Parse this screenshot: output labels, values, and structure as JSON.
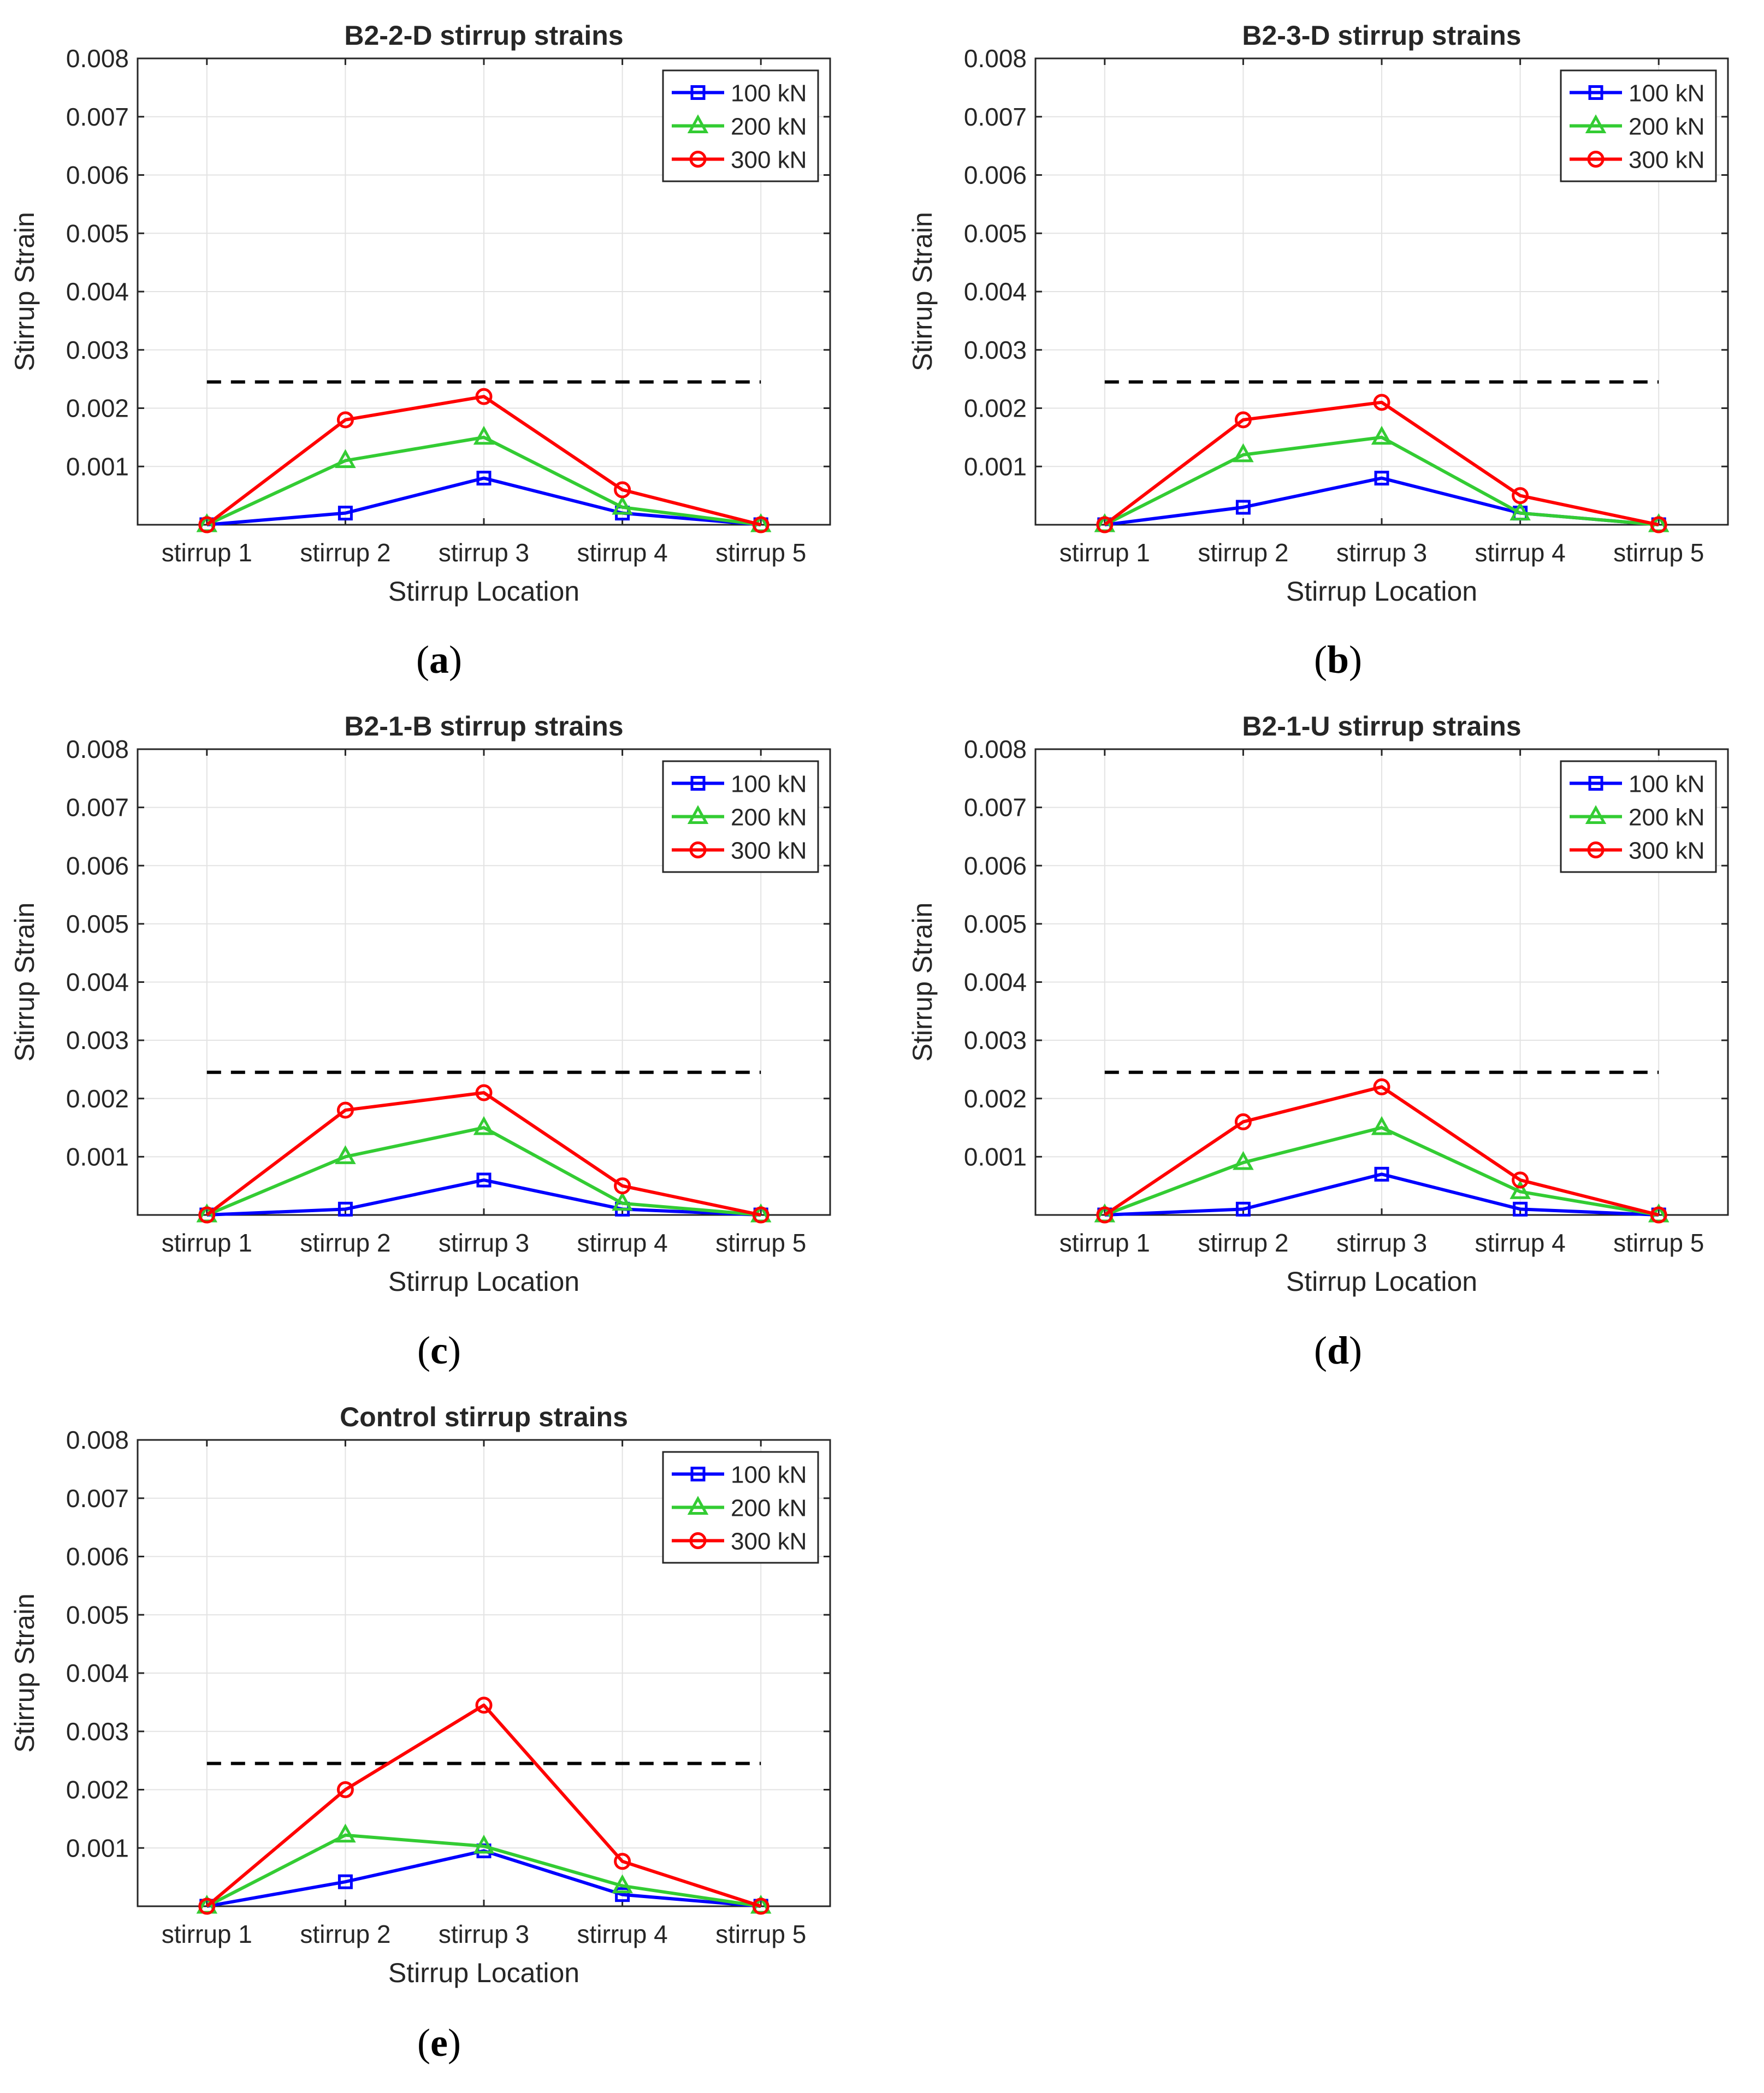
{
  "chart_data": [
    {
      "type": "line",
      "panel": "a",
      "title": "B2-2-D stirrup strains",
      "xlabel": "Stirrup Location",
      "ylabel": "Stirrup Strain",
      "categories": [
        "stirrup 1",
        "stirrup 2",
        "stirrup 3",
        "stirrup 4",
        "stirrup 5"
      ],
      "ylim": [
        0,
        0.008
      ],
      "yticks": [
        0.001,
        0.002,
        0.003,
        0.004,
        0.005,
        0.006,
        0.007,
        0.008
      ],
      "ytick_labels": [
        "0.001",
        "0.002",
        "0.003",
        "0.004",
        "0.005",
        "0.006",
        "0.007",
        "0.008"
      ],
      "grid": true,
      "legend_position": "top-right",
      "series": [
        {
          "name": "100 kN",
          "color": "#0000ff",
          "marker": "square",
          "values": [
            0,
            0.0002,
            0.0008,
            0.0002,
            0
          ]
        },
        {
          "name": "200 kN",
          "color": "#33cc33",
          "marker": "triangle",
          "values": [
            0,
            0.0011,
            0.0015,
            0.0003,
            0
          ]
        },
        {
          "name": "300 kN",
          "color": "#ff0000",
          "marker": "circle",
          "values": [
            0,
            0.0018,
            0.0022,
            0.0006,
            0
          ]
        }
      ],
      "reference_line": {
        "value": 0.00245,
        "color": "#000000",
        "style": "dashed"
      }
    },
    {
      "type": "line",
      "panel": "b",
      "title": "B2-3-D stirrup strains",
      "xlabel": "Stirrup Location",
      "ylabel": "Stirrup Strain",
      "categories": [
        "stirrup 1",
        "stirrup 2",
        "stirrup 3",
        "stirrup 4",
        "stirrup 5"
      ],
      "ylim": [
        0,
        0.008
      ],
      "yticks": [
        0.001,
        0.002,
        0.003,
        0.004,
        0.005,
        0.006,
        0.007,
        0.008
      ],
      "ytick_labels": [
        "0.001",
        "0.002",
        "0.003",
        "0.004",
        "0.005",
        "0.006",
        "0.007",
        "0.008"
      ],
      "grid": true,
      "legend_position": "top-right",
      "series": [
        {
          "name": "100 kN",
          "color": "#0000ff",
          "marker": "square",
          "values": [
            0,
            0.0003,
            0.0008,
            0.0002,
            0
          ]
        },
        {
          "name": "200 kN",
          "color": "#33cc33",
          "marker": "triangle",
          "values": [
            0,
            0.0012,
            0.0015,
            0.0002,
            0
          ]
        },
        {
          "name": "300 kN",
          "color": "#ff0000",
          "marker": "circle",
          "values": [
            0,
            0.0018,
            0.0021,
            0.0005,
            0
          ]
        }
      ],
      "reference_line": {
        "value": 0.00245,
        "color": "#000000",
        "style": "dashed"
      }
    },
    {
      "type": "line",
      "panel": "c",
      "title": "B2-1-B stirrup strains",
      "xlabel": "Stirrup Location",
      "ylabel": "Stirrup Strain",
      "categories": [
        "stirrup 1",
        "stirrup 2",
        "stirrup 3",
        "stirrup 4",
        "stirrup 5"
      ],
      "ylim": [
        0,
        0.008
      ],
      "yticks": [
        0.001,
        0.002,
        0.003,
        0.004,
        0.005,
        0.006,
        0.007,
        0.008
      ],
      "ytick_labels": [
        "0.001",
        "0.002",
        "0.003",
        "0.004",
        "0.005",
        "0.006",
        "0.007",
        "0.008"
      ],
      "grid": true,
      "legend_position": "top-right",
      "series": [
        {
          "name": "100 kN",
          "color": "#0000ff",
          "marker": "square",
          "values": [
            0,
            0.0001,
            0.0006,
            0.0001,
            0
          ]
        },
        {
          "name": "200 kN",
          "color": "#33cc33",
          "marker": "triangle",
          "values": [
            0,
            0.001,
            0.0015,
            0.0002,
            0
          ]
        },
        {
          "name": "300 kN",
          "color": "#ff0000",
          "marker": "circle",
          "values": [
            0,
            0.0018,
            0.0021,
            0.0005,
            0
          ]
        }
      ],
      "reference_line": {
        "value": 0.00245,
        "color": "#000000",
        "style": "dashed"
      }
    },
    {
      "type": "line",
      "panel": "d",
      "title": "B2-1-U stirrup strains",
      "xlabel": "Stirrup Location",
      "ylabel": "Stirrup Strain",
      "categories": [
        "stirrup 1",
        "stirrup 2",
        "stirrup 3",
        "stirrup 4",
        "stirrup 5"
      ],
      "ylim": [
        0,
        0.008
      ],
      "yticks": [
        0.001,
        0.002,
        0.003,
        0.004,
        0.005,
        0.006,
        0.007,
        0.008
      ],
      "ytick_labels": [
        "0.001",
        "0.002",
        "0.003",
        "0.004",
        "0.005",
        "0.006",
        "0.007",
        "0.008"
      ],
      "grid": true,
      "legend_position": "top-right",
      "series": [
        {
          "name": "100 kN",
          "color": "#0000ff",
          "marker": "square",
          "values": [
            0,
            0.0001,
            0.0007,
            0.0001,
            0
          ]
        },
        {
          "name": "200 kN",
          "color": "#33cc33",
          "marker": "triangle",
          "values": [
            0,
            0.0009,
            0.0015,
            0.0004,
            0
          ]
        },
        {
          "name": "300 kN",
          "color": "#ff0000",
          "marker": "circle",
          "values": [
            0,
            0.0016,
            0.0022,
            0.0006,
            0
          ]
        }
      ],
      "reference_line": {
        "value": 0.00245,
        "color": "#000000",
        "style": "dashed"
      }
    },
    {
      "type": "line",
      "panel": "e",
      "title": "Control stirrup strains",
      "xlabel": "Stirrup Location",
      "ylabel": "Stirrup Strain",
      "categories": [
        "stirrup 1",
        "stirrup 2",
        "stirrup 3",
        "stirrup 4",
        "stirrup 5"
      ],
      "ylim": [
        0,
        0.008
      ],
      "yticks": [
        0.001,
        0.002,
        0.003,
        0.004,
        0.005,
        0.006,
        0.007,
        0.008
      ],
      "ytick_labels": [
        "0.001",
        "0.002",
        "0.003",
        "0.004",
        "0.005",
        "0.006",
        "0.007",
        "0.008"
      ],
      "grid": true,
      "legend_position": "top-right",
      "series": [
        {
          "name": "100 kN",
          "color": "#0000ff",
          "marker": "square",
          "values": [
            0,
            0.00042,
            0.00095,
            0.0002,
            0
          ]
        },
        {
          "name": "200 kN",
          "color": "#33cc33",
          "marker": "triangle",
          "values": [
            0,
            0.00122,
            0.00103,
            0.00035,
            0
          ]
        },
        {
          "name": "300 kN",
          "color": "#ff0000",
          "marker": "circle",
          "values": [
            0,
            0.002,
            0.00345,
            0.00077,
            0
          ]
        }
      ],
      "reference_line": {
        "value": 0.00245,
        "color": "#000000",
        "style": "dashed"
      }
    }
  ],
  "panel_captions": [
    "(a)",
    "(b)",
    "(c)",
    "(d)",
    "(e)"
  ]
}
